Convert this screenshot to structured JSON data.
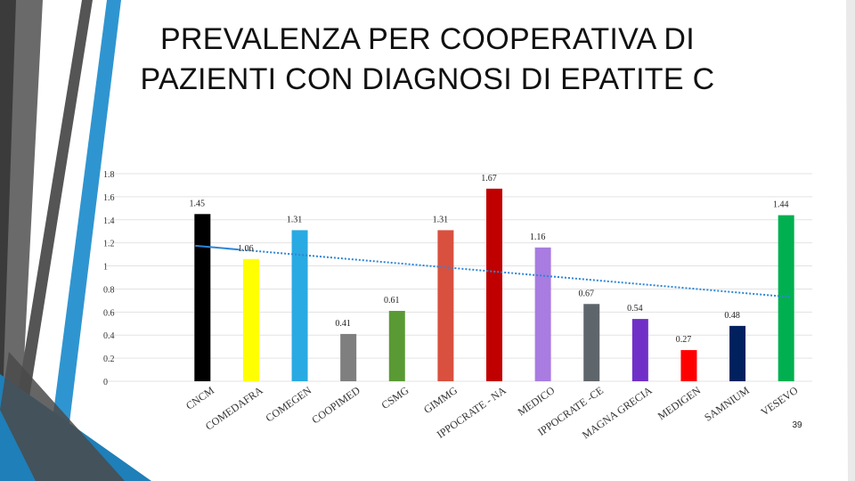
{
  "slide": {
    "title": "PREVALENZA PER COOPERATIVA DI PAZIENTI CON DIAGNOSI DI EPATITE C",
    "page_number": "39"
  },
  "chart_data": {
    "type": "bar",
    "title": "",
    "xlabel": "",
    "ylabel": "",
    "ylim": [
      0,
      1.8
    ],
    "yticks": [
      "0",
      "0.2",
      "0.4",
      "0.6",
      "0.8",
      "1",
      "1.2",
      "1.4",
      "1.6",
      "1.8"
    ],
    "grid": true,
    "legend": "none",
    "categories": [
      "CNCM",
      "COMEDAFRA",
      "COMEGEN",
      "COOPIMED",
      "CSMG",
      "GIMMG",
      "IPPOCRATE - NA",
      "MEDICO",
      "IPPOCRATE -CE",
      "MAGNA GRECIA",
      "MEDIGEN",
      "SAMNIUM",
      "VESEVO"
    ],
    "values": [
      1.45,
      1.06,
      1.31,
      0.41,
      0.61,
      1.31,
      1.67,
      1.16,
      0.67,
      0.54,
      0.27,
      0.48,
      1.44
    ],
    "data_labels": [
      "1.45",
      "1.06",
      "1.31",
      "0.41",
      "0.61",
      "1.31",
      "1.67",
      "1.16",
      "0.67",
      "0.54",
      "0.27",
      "0.48",
      "1.44"
    ],
    "colors": [
      "#000000",
      "#ffff00",
      "#29aae2",
      "#7f7f7f",
      "#5a9a34",
      "#d9503f",
      "#c00000",
      "#a87ce0",
      "#5f666b",
      "#7030c8",
      "#ff0000",
      "#00215e",
      "#00b050"
    ],
    "trendline": {
      "type": "linear",
      "color": "#2e86d6",
      "style": "dotted"
    }
  }
}
